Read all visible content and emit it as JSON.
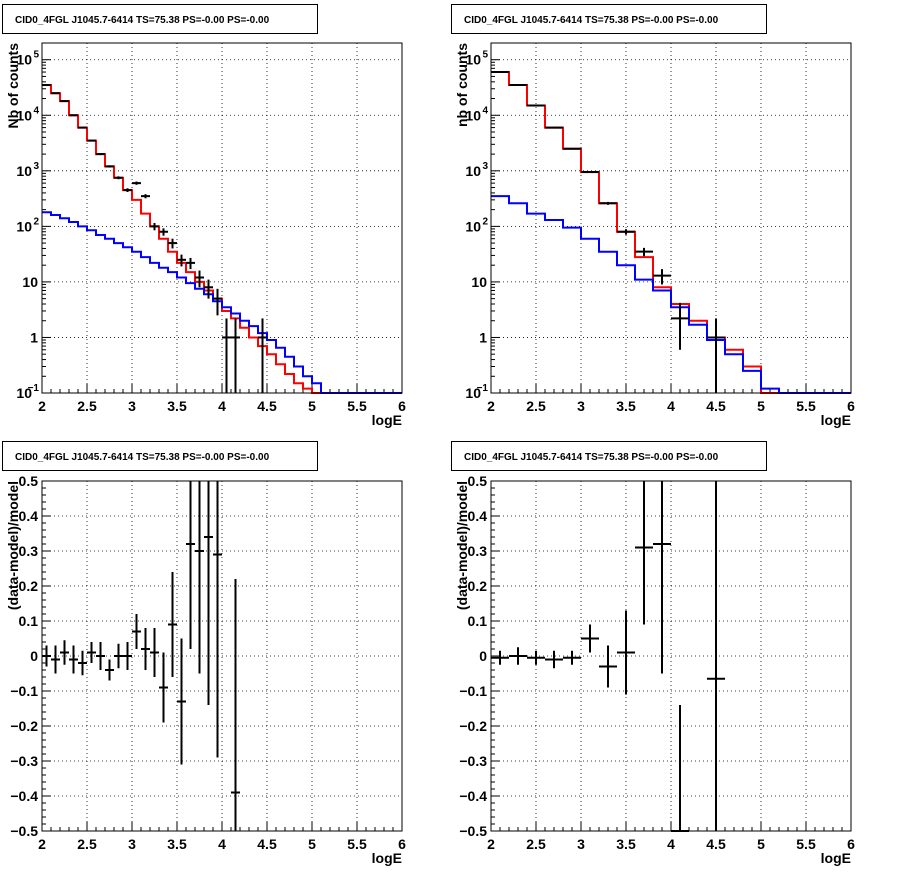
{
  "colors": {
    "data": "#000000",
    "model_total": "#ff0000",
    "model_bkg": "#0000ff"
  },
  "chart_data": [
    {
      "id": "counts-left",
      "type": "line",
      "title": "CID0_4FGL J1045.7-6414 TS=75.38 PS=-0.00 PS=-0.00",
      "xlabel": "logE",
      "ylabel": "Nb of counts",
      "xlim": [
        2,
        6
      ],
      "ylim": [
        0.1,
        200000
      ],
      "yscale": "log",
      "grid": true,
      "x_ticks": [
        "2",
        "2.5",
        "3",
        "3.5",
        "4",
        "4.5",
        "5",
        "5.5",
        "6"
      ],
      "y_ticks": [
        {
          "v": 0.1,
          "label": "10",
          "sup": "−1"
        },
        {
          "v": 1,
          "label": "1"
        },
        {
          "v": 10,
          "label": "10"
        },
        {
          "v": 100,
          "label": "10",
          "sup": "2"
        },
        {
          "v": 1000,
          "label": "10",
          "sup": "3"
        },
        {
          "v": 10000,
          "label": "10",
          "sup": "4"
        },
        {
          "v": 100000,
          "label": "10",
          "sup": "5"
        }
      ],
      "bin_edges": [
        2.0,
        2.1,
        2.2,
        2.3,
        2.4,
        2.5,
        2.6,
        2.7,
        2.8,
        2.9,
        3.0,
        3.1,
        3.2,
        3.3,
        3.4,
        3.5,
        3.6,
        3.7,
        3.8,
        3.9,
        4.0,
        4.1,
        4.2,
        4.3,
        4.4,
        4.5,
        4.6,
        4.7,
        4.8,
        4.9,
        5.0,
        5.1,
        5.2,
        5.3,
        5.4,
        5.5,
        5.6,
        5.7,
        5.8,
        5.9,
        6.0
      ],
      "series": [
        {
          "name": "",
          "kind": "step",
          "color": "#ff0000",
          "values": [
            35000,
            25000,
            18000,
            10000,
            6000,
            3500,
            2000,
            1200,
            750,
            450,
            300,
            170,
            100,
            60,
            35,
            22,
            15,
            10,
            7,
            5,
            3,
            2.2,
            1.5,
            1.0,
            0.7,
            0.5,
            0.33,
            0.22,
            0.15,
            0.12,
            0.1,
            0.1,
            0.1,
            0.1,
            0.1,
            0.1,
            0.1,
            0.1,
            0.1,
            0.1
          ]
        },
        {
          "name": "",
          "kind": "step",
          "color": "#0000ff",
          "values": [
            180,
            160,
            140,
            120,
            100,
            85,
            70,
            60,
            50,
            42,
            35,
            28,
            22,
            18,
            15,
            12,
            9.5,
            7.5,
            6,
            4.5,
            3.5,
            2.7,
            2.0,
            1.6,
            1.2,
            0.9,
            0.65,
            0.45,
            0.3,
            0.2,
            0.15,
            0.1,
            0.1,
            0.1,
            0.1,
            0.1,
            0.1,
            0.1,
            0.1,
            0.1
          ]
        },
        {
          "name": "",
          "kind": "points",
          "color": "#000000",
          "x": [
            2.05,
            2.15,
            2.25,
            2.35,
            2.45,
            2.55,
            2.65,
            2.75,
            2.85,
            2.95,
            3.05,
            3.15,
            3.25,
            3.35,
            3.45,
            3.55,
            3.65,
            3.75,
            3.85,
            3.95,
            4.05,
            4.15,
            4.45
          ],
          "y": [
            35000,
            25000,
            18000,
            10000,
            6000,
            3500,
            2000,
            1200,
            750,
            450,
            600,
            350,
            100,
            80,
            50,
            25,
            22,
            12,
            8,
            5,
            1,
            1,
            1
          ],
          "yerr_low": [
            300,
            250,
            200,
            150,
            120,
            90,
            70,
            55,
            45,
            35,
            40,
            30,
            15,
            12,
            10,
            6,
            5,
            4,
            3,
            2.5,
            0.9,
            0.9,
            0.9
          ],
          "yerr_high": [
            300,
            250,
            200,
            150,
            120,
            90,
            70,
            55,
            45,
            35,
            40,
            30,
            15,
            12,
            10,
            6,
            5,
            4,
            3,
            2.5,
            1.2,
            1.2,
            1.2
          ]
        }
      ]
    },
    {
      "id": "counts-right",
      "type": "line",
      "title": "CID0_4FGL J1045.7-6414 TS=75.38 PS=-0.00 PS=-0.00",
      "xlabel": "logE",
      "ylabel": "nb of counts",
      "xlim": [
        2,
        6
      ],
      "ylim": [
        0.1,
        200000
      ],
      "yscale": "log",
      "grid": true,
      "x_ticks": [
        "2",
        "2.5",
        "3",
        "3.5",
        "4",
        "4.5",
        "5",
        "5.5",
        "6"
      ],
      "y_ticks": [
        {
          "v": 0.1,
          "label": "10",
          "sup": "−1"
        },
        {
          "v": 1,
          "label": "1"
        },
        {
          "v": 10,
          "label": "10"
        },
        {
          "v": 100,
          "label": "10",
          "sup": "2"
        },
        {
          "v": 1000,
          "label": "10",
          "sup": "3"
        },
        {
          "v": 10000,
          "label": "10",
          "sup": "4"
        },
        {
          "v": 100000,
          "label": "10",
          "sup": "5"
        }
      ],
      "bin_edges": [
        2.0,
        2.2,
        2.4,
        2.6,
        2.8,
        3.0,
        3.2,
        3.4,
        3.6,
        3.8,
        4.0,
        4.2,
        4.4,
        4.6,
        4.8,
        5.0,
        5.2,
        5.4,
        5.6,
        5.8,
        6.0
      ],
      "series": [
        {
          "name": "",
          "kind": "step",
          "color": "#ff0000",
          "values": [
            60000,
            35000,
            15000,
            6000,
            2500,
            950,
            260,
            80,
            28,
            8,
            4,
            2,
            1.0,
            0.6,
            0.3,
            0.1,
            0.1,
            0.1,
            0.1,
            0.1
          ]
        },
        {
          "name": "",
          "kind": "step",
          "color": "#0000ff",
          "values": [
            350,
            260,
            170,
            130,
            95,
            60,
            35,
            20,
            11,
            7,
            3.5,
            1.7,
            0.9,
            0.5,
            0.25,
            0.12,
            0.1,
            0.1,
            0.1,
            0.1
          ]
        },
        {
          "name": "",
          "kind": "points",
          "color": "#000000",
          "x": [
            2.1,
            2.3,
            2.5,
            2.7,
            2.9,
            3.1,
            3.3,
            3.5,
            3.7,
            3.9,
            4.1,
            4.5
          ],
          "y": [
            60000,
            35000,
            15000,
            6000,
            2500,
            950,
            260,
            80,
            35,
            13,
            2.2,
            1
          ],
          "yerr_low": [
            300,
            200,
            130,
            80,
            50,
            30,
            16,
            9,
            6,
            4,
            1.6,
            0.9
          ],
          "yerr_high": [
            300,
            200,
            130,
            80,
            50,
            30,
            16,
            9,
            6,
            4,
            2.0,
            1.2
          ]
        }
      ]
    },
    {
      "id": "residuals-left",
      "type": "scatter",
      "title": "CID0_4FGL J1045.7-6414 TS=75.38 PS=-0.00 PS=-0.00",
      "xlabel": "logE",
      "ylabel": "(data-model)/model",
      "xlim": [
        2,
        6
      ],
      "ylim": [
        -0.5,
        0.5
      ],
      "yscale": "linear",
      "grid": true,
      "x_ticks": [
        "2",
        "2.5",
        "3",
        "3.5",
        "4",
        "4.5",
        "5",
        "5.5",
        "6"
      ],
      "y_ticks": [
        {
          "v": -0.5,
          "label": "−0.5"
        },
        {
          "v": -0.4,
          "label": "−0.4"
        },
        {
          "v": -0.3,
          "label": "−0.3"
        },
        {
          "v": -0.2,
          "label": "−0.2"
        },
        {
          "v": -0.1,
          "label": "−0.1"
        },
        {
          "v": 0,
          "label": "0"
        },
        {
          "v": 0.1,
          "label": "0.1"
        },
        {
          "v": 0.2,
          "label": "0.2"
        },
        {
          "v": 0.3,
          "label": "0.3"
        },
        {
          "v": 0.4,
          "label": "0.4"
        },
        {
          "v": 0.5,
          "label": "0.5"
        }
      ],
      "series": [
        {
          "name": "",
          "kind": "points",
          "color": "#000000",
          "xerr": 0.05,
          "x": [
            2.05,
            2.15,
            2.25,
            2.35,
            2.45,
            2.55,
            2.65,
            2.75,
            2.85,
            2.95,
            3.05,
            3.15,
            3.25,
            3.35,
            3.45,
            3.55,
            3.65,
            3.75,
            3.85,
            3.95,
            4.15
          ],
          "y": [
            0.0,
            -0.01,
            0.01,
            -0.01,
            -0.02,
            0.01,
            0.0,
            -0.04,
            0.0,
            0.0,
            0.07,
            0.02,
            0.01,
            -0.09,
            0.09,
            -0.13,
            0.32,
            0.3,
            0.34,
            0.29,
            -0.39
          ],
          "yerr": [
            0.03,
            0.04,
            0.035,
            0.04,
            0.035,
            0.03,
            0.04,
            0.03,
            0.035,
            0.04,
            0.05,
            0.06,
            0.07,
            0.1,
            0.15,
            0.18,
            0.3,
            0.35,
            0.48,
            0.58,
            0.61
          ]
        }
      ]
    },
    {
      "id": "residuals-right",
      "type": "scatter",
      "title": "CID0_4FGL J1045.7-6414 TS=75.38 PS=-0.00 PS=-0.00",
      "xlabel": "logE",
      "ylabel": "(data-model)/model",
      "xlim": [
        2,
        6
      ],
      "ylim": [
        -0.5,
        0.5
      ],
      "yscale": "linear",
      "grid": true,
      "x_ticks": [
        "2",
        "2.5",
        "3",
        "3.5",
        "4",
        "4.5",
        "5",
        "5.5",
        "6"
      ],
      "y_ticks": [
        {
          "v": -0.5,
          "label": "−0.5"
        },
        {
          "v": -0.4,
          "label": "−0.4"
        },
        {
          "v": -0.3,
          "label": "−0.3"
        },
        {
          "v": -0.2,
          "label": "−0.2"
        },
        {
          "v": -0.1,
          "label": "−0.1"
        },
        {
          "v": 0,
          "label": "0"
        },
        {
          "v": 0.1,
          "label": "0.1"
        },
        {
          "v": 0.2,
          "label": "0.2"
        },
        {
          "v": 0.3,
          "label": "0.3"
        },
        {
          "v": 0.4,
          "label": "0.4"
        },
        {
          "v": 0.5,
          "label": "0.5"
        }
      ],
      "series": [
        {
          "name": "",
          "kind": "points",
          "color": "#000000",
          "xerr": 0.1,
          "x": [
            2.1,
            2.3,
            2.5,
            2.7,
            2.9,
            3.1,
            3.3,
            3.5,
            3.7,
            3.9,
            4.1,
            4.5
          ],
          "y": [
            -0.005,
            0.0,
            -0.005,
            -0.01,
            -0.005,
            0.05,
            -0.03,
            0.01,
            0.31,
            0.32,
            -0.5,
            -0.065
          ],
          "yerr": [
            0.02,
            0.025,
            0.02,
            0.025,
            0.02,
            0.04,
            0.06,
            0.12,
            0.22,
            0.37,
            0.36,
            0.6
          ]
        }
      ]
    }
  ]
}
